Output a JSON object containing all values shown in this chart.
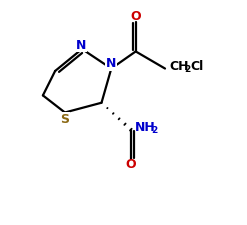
{
  "bg_color": "#ffffff",
  "line_color": "#000000",
  "atom_color_N": "#0000cc",
  "atom_color_S": "#8b6914",
  "atom_color_O": "#cc0000",
  "figsize": [
    2.47,
    2.25
  ],
  "dpi": 100,
  "lw": 1.6,
  "font_size": 9,
  "font_size_sub": 6.5,
  "xlim": [
    0,
    10
  ],
  "ylim": [
    0,
    9
  ]
}
